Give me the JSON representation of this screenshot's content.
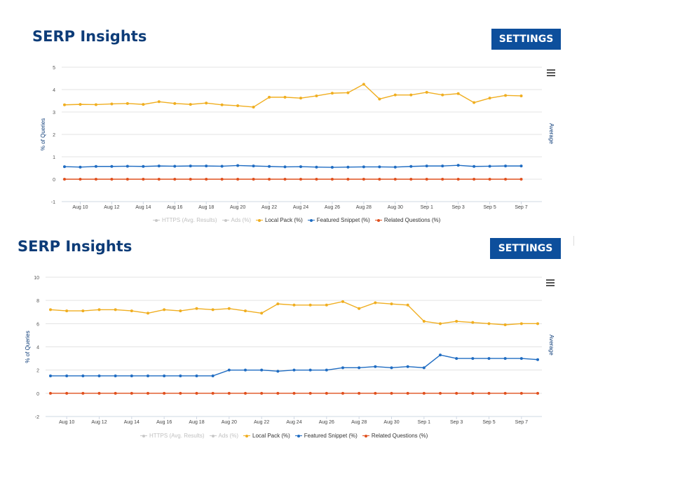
{
  "panels": [
    {
      "title": "SERP Insights",
      "settings_label": "SETTINGS",
      "right_axis_label": "Average",
      "legend": [
        {
          "label": "HTTPS (Avg. Results)",
          "color": "#c8c8c8",
          "active": false
        },
        {
          "label": "Ads (%)",
          "color": "#c8c8c8",
          "active": false
        },
        {
          "label": "Local Pack (%)",
          "color": "#f0ae20",
          "active": true
        },
        {
          "label": "Featured Snippet (%)",
          "color": "#1f6cc2",
          "active": true
        },
        {
          "label": "Related Questions (%)",
          "color": "#e0501e",
          "active": true
        }
      ]
    },
    {
      "title": "SERP Insights",
      "settings_label": "SETTINGS",
      "right_axis_label": "Average",
      "legend": [
        {
          "label": "HTTPS (Avg. Results)",
          "color": "#c8c8c8",
          "active": false
        },
        {
          "label": "Ads (%)",
          "color": "#c8c8c8",
          "active": false
        },
        {
          "label": "Local Pack (%)",
          "color": "#f0ae20",
          "active": true
        },
        {
          "label": "Featured Snippet (%)",
          "color": "#1f6cc2",
          "active": true
        },
        {
          "label": "Related Questions (%)",
          "color": "#e0501e",
          "active": true
        }
      ]
    }
  ],
  "chart_data": [
    {
      "type": "line",
      "ylabel": "% of Queries",
      "ylim": [
        -1,
        5
      ],
      "yticks": [
        -1,
        0,
        1,
        2,
        3,
        4,
        5
      ],
      "x_tick_labels": [
        "Aug 10",
        "Aug 12",
        "Aug 14",
        "Aug 16",
        "Aug 18",
        "Aug 20",
        "Aug 22",
        "Aug 24",
        "Aug 26",
        "Aug 28",
        "Aug 30",
        "Sep 1",
        "Sep 3",
        "Sep 5",
        "Sep 7"
      ],
      "x": [
        "Aug 9",
        "Aug 10",
        "Aug 11",
        "Aug 12",
        "Aug 13",
        "Aug 14",
        "Aug 15",
        "Aug 16",
        "Aug 17",
        "Aug 18",
        "Aug 19",
        "Aug 20",
        "Aug 21",
        "Aug 22",
        "Aug 23",
        "Aug 24",
        "Aug 25",
        "Aug 26",
        "Aug 27",
        "Aug 28",
        "Aug 29",
        "Aug 30",
        "Aug 31",
        "Sep 1",
        "Sep 2",
        "Sep 3",
        "Sep 4",
        "Sep 5",
        "Sep 6",
        "Sep 7",
        "Sep 8"
      ],
      "grid": true,
      "series": [
        {
          "name": "Local Pack (%)",
          "color": "#f0ae20",
          "values": [
            3.32,
            3.34,
            3.33,
            3.36,
            3.38,
            3.34,
            3.46,
            3.38,
            3.34,
            3.4,
            3.32,
            3.28,
            3.22,
            3.66,
            3.66,
            3.62,
            3.72,
            3.84,
            3.86,
            4.24,
            3.58,
            3.76,
            3.76,
            3.88,
            3.76,
            3.82,
            3.42,
            3.62,
            3.74,
            3.72,
            null
          ]
        },
        {
          "name": "Featured Snippet (%)",
          "color": "#1f6cc2",
          "values": [
            0.56,
            0.54,
            0.57,
            0.57,
            0.58,
            0.57,
            0.59,
            0.58,
            0.59,
            0.59,
            0.58,
            0.61,
            0.59,
            0.57,
            0.55,
            0.56,
            0.54,
            0.53,
            0.54,
            0.55,
            0.55,
            0.54,
            0.57,
            0.59,
            0.59,
            0.62,
            0.57,
            0.58,
            0.59,
            0.59,
            null
          ]
        },
        {
          "name": "Related Questions (%)",
          "color": "#e0501e",
          "values": [
            0,
            0,
            0,
            0,
            0,
            0,
            0,
            0,
            0,
            0,
            0,
            0,
            0,
            0,
            0,
            0,
            0,
            0,
            0,
            0,
            0,
            0,
            0,
            0,
            0,
            0,
            0,
            0,
            0,
            0,
            null
          ]
        }
      ]
    },
    {
      "type": "line",
      "ylabel": "% of Queries",
      "ylim": [
        -2,
        10
      ],
      "yticks": [
        -2,
        0,
        2,
        4,
        6,
        8,
        10
      ],
      "x_tick_labels": [
        "Aug 10",
        "Aug 12",
        "Aug 14",
        "Aug 16",
        "Aug 18",
        "Aug 20",
        "Aug 22",
        "Aug 24",
        "Aug 26",
        "Aug 28",
        "Aug 30",
        "Sep 1",
        "Sep 3",
        "Sep 5",
        "Sep 7"
      ],
      "x": [
        "Aug 9",
        "Aug 10",
        "Aug 11",
        "Aug 12",
        "Aug 13",
        "Aug 14",
        "Aug 15",
        "Aug 16",
        "Aug 17",
        "Aug 18",
        "Aug 19",
        "Aug 20",
        "Aug 21",
        "Aug 22",
        "Aug 23",
        "Aug 24",
        "Aug 25",
        "Aug 26",
        "Aug 27",
        "Aug 28",
        "Aug 29",
        "Aug 30",
        "Aug 31",
        "Sep 1",
        "Sep 2",
        "Sep 3",
        "Sep 4",
        "Sep 5",
        "Sep 6",
        "Sep 7",
        "Sep 8"
      ],
      "grid": true,
      "series": [
        {
          "name": "Local Pack (%)",
          "color": "#f0ae20",
          "values": [
            7.2,
            7.1,
            7.1,
            7.2,
            7.2,
            7.1,
            6.9,
            7.2,
            7.1,
            7.3,
            7.2,
            7.3,
            7.1,
            6.9,
            7.7,
            7.6,
            7.6,
            7.6,
            7.9,
            7.3,
            7.8,
            7.7,
            7.6,
            6.2,
            6.0,
            6.2,
            6.1,
            6.0,
            5.9,
            6.0,
            6.0
          ]
        },
        {
          "name": "Featured Snippet (%)",
          "color": "#1f6cc2",
          "values": [
            1.5,
            1.5,
            1.5,
            1.5,
            1.5,
            1.5,
            1.5,
            1.5,
            1.5,
            1.5,
            1.5,
            2.0,
            2.0,
            2.0,
            1.9,
            2.0,
            2.0,
            2.0,
            2.2,
            2.2,
            2.3,
            2.2,
            2.3,
            2.2,
            3.3,
            3.0,
            3.0,
            3.0,
            3.0,
            3.0,
            2.9
          ]
        },
        {
          "name": "Related Questions (%)",
          "color": "#e0501e",
          "values": [
            0,
            0,
            0,
            0,
            0,
            0,
            0,
            0,
            0,
            0,
            0,
            0,
            0,
            0,
            0,
            0,
            0,
            0,
            0,
            0,
            0,
            0,
            0,
            0,
            0,
            0,
            0,
            0,
            0,
            0,
            0
          ]
        }
      ]
    }
  ]
}
